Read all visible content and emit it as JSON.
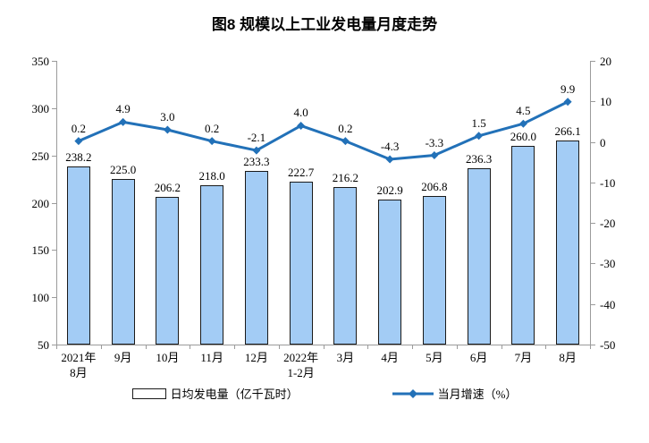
{
  "chart_data": {
    "type": "combo",
    "title": "图8 规模以上工业发电量月度走势",
    "categories": [
      "2021年\n8月",
      "9月",
      "10月",
      "11月",
      "12月",
      "2022年\n1-2月",
      "3月",
      "4月",
      "5月",
      "6月",
      "7月",
      "8月"
    ],
    "series": [
      {
        "name": "日均发电量（亿千瓦时）",
        "type": "bar",
        "axis": "left",
        "values": [
          238.2,
          225.0,
          206.2,
          218.0,
          233.3,
          222.7,
          216.2,
          202.9,
          206.8,
          236.3,
          260.0,
          266.1
        ],
        "fill": "#A3CCF5",
        "border": "#1A1A1A"
      },
      {
        "name": "当月增速（%）",
        "type": "line",
        "axis": "right",
        "values": [
          0.2,
          4.9,
          3.0,
          0.2,
          -2.1,
          4.0,
          0.2,
          -4.3,
          -3.3,
          1.5,
          4.5,
          9.9
        ],
        "color": "#2271B8",
        "marker": "diamond"
      }
    ],
    "left_axis": {
      "min": 50,
      "max": 350,
      "step": 50,
      "ticks": [
        350,
        300,
        250,
        200,
        150,
        100,
        50
      ]
    },
    "right_axis": {
      "min": -50,
      "max": 20,
      "step": 10,
      "ticks": [
        20,
        10,
        0,
        -10,
        -20,
        -30,
        -40,
        -50
      ]
    },
    "grid": false,
    "legend_position": "bottom"
  },
  "colors": {
    "bar_fill": "#A3CCF5",
    "bar_border": "#1A1A1A",
    "line": "#2271B8",
    "axis_line": "#9B9B9B",
    "text": "#000000",
    "background": "#FFFFFF"
  }
}
